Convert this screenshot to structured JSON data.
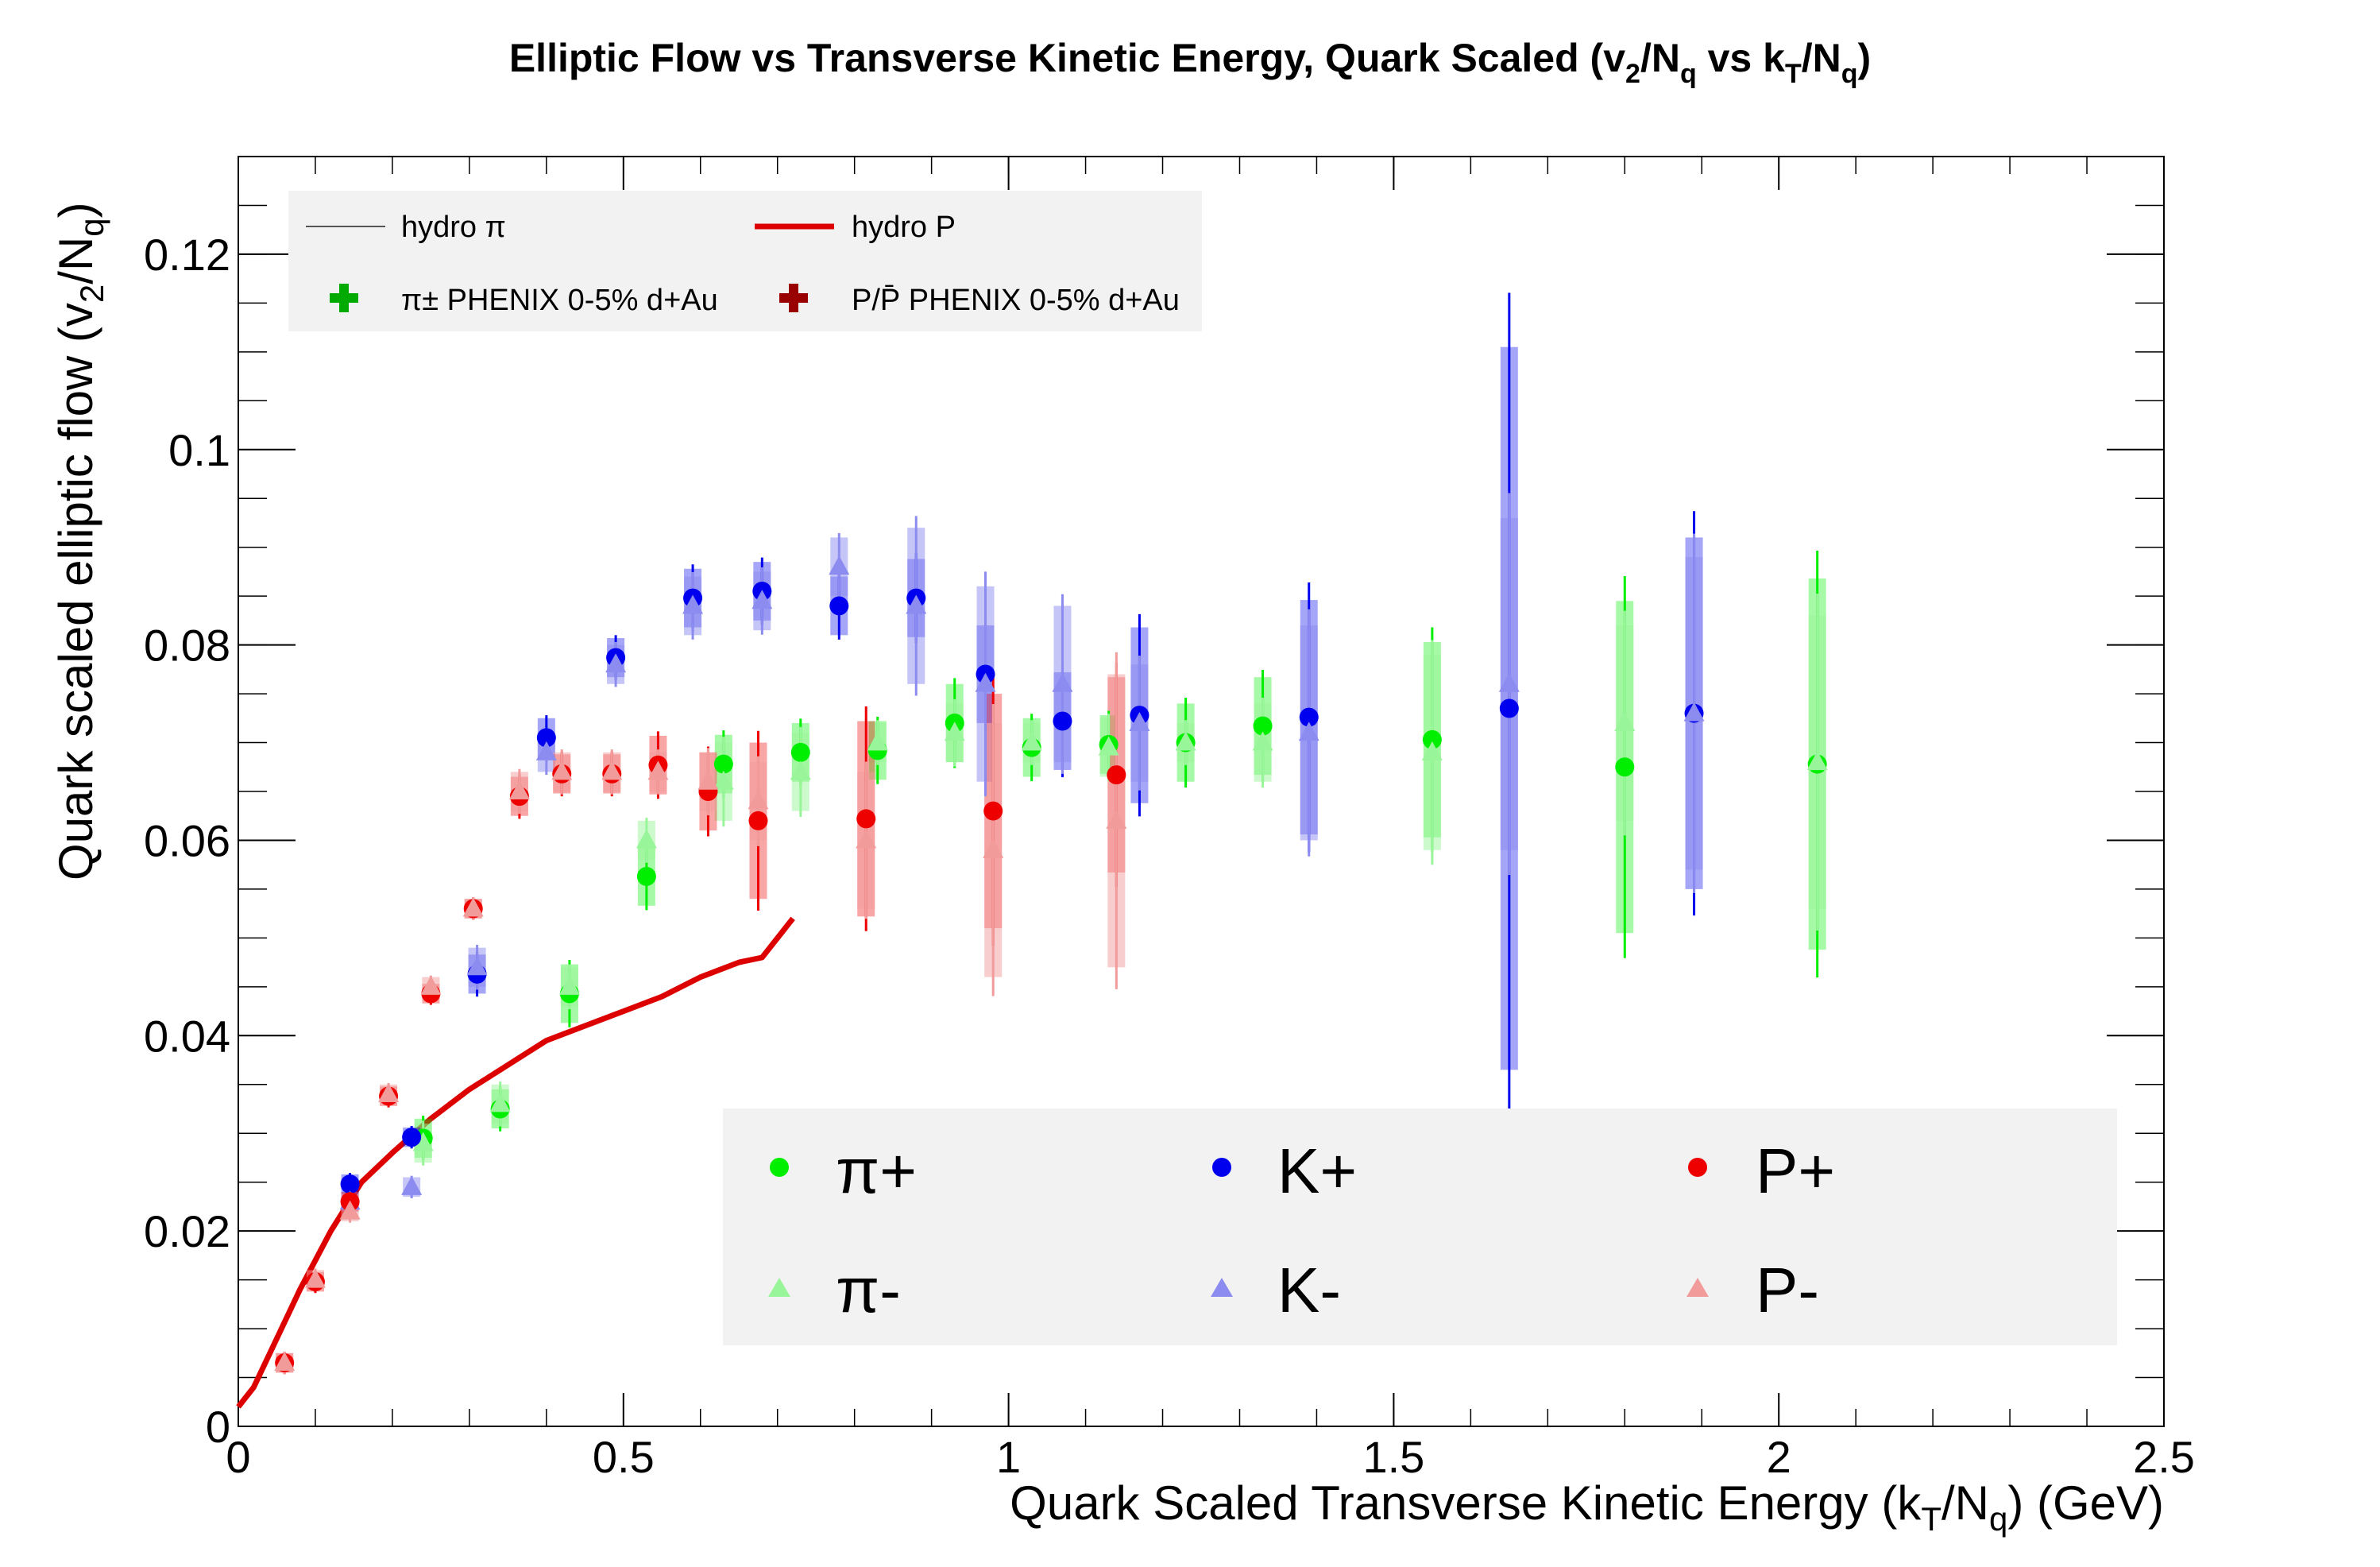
{
  "chart_data": {
    "type": "scatter",
    "title": "Elliptic Flow vs Transverse Kinetic Energy, Quark Scaled (v2/Nq vs kT/Nq)",
    "xlabel": "Quark Scaled Transverse Kinetic Energy (kT/Nq) (GeV)",
    "ylabel": "Quark scaled elliptic flow (v2/Nq)",
    "xlim": [
      0,
      2.5
    ],
    "ylim": [
      0,
      0.13
    ],
    "xticks": [
      0,
      0.5,
      1,
      1.5,
      2,
      2.5
    ],
    "xtick_labels": [
      "0",
      "0.5",
      "1",
      "1.5",
      "2",
      "2.5"
    ],
    "yticks": [
      0,
      0.02,
      0.04,
      0.06,
      0.08,
      0.1,
      0.12
    ],
    "ytick_labels": [
      "0",
      "0.02",
      "0.04",
      "0.06",
      "0.08",
      "0.1",
      "0.12"
    ],
    "series": [
      {
        "name": "π+",
        "marker": "circle",
        "color": "#00ee00",
        "x": [
          0.24,
          0.34,
          0.43,
          0.53,
          0.63,
          0.73,
          0.83,
          0.93,
          1.03,
          1.13,
          1.23,
          1.33,
          1.55,
          1.8,
          2.05
        ],
        "y": [
          0.0295,
          0.0325,
          0.0443,
          0.0563,
          0.0678,
          0.069,
          0.0692,
          0.072,
          0.0695,
          0.0698,
          0.07,
          0.0717,
          0.0703,
          0.0675,
          0.0678
        ],
        "err": [
          0.002,
          0.002,
          0.003,
          0.003,
          0.003,
          0.003,
          0.003,
          0.004,
          0.003,
          0.003,
          0.004,
          0.005,
          0.01,
          0.017,
          0.019
        ]
      },
      {
        "name": "π-",
        "marker": "triangle",
        "color": "#99f599",
        "x": [
          0.24,
          0.34,
          0.43,
          0.53,
          0.63,
          0.73,
          0.83,
          0.93,
          1.03,
          1.13,
          1.23,
          1.33,
          1.55,
          1.8,
          2.05
        ],
        "y": [
          0.029,
          0.033,
          0.045,
          0.06,
          0.066,
          0.067,
          0.07,
          0.071,
          0.07,
          0.0695,
          0.07,
          0.07,
          0.069,
          0.072,
          0.068
        ],
        "err": [
          0.002,
          0.002,
          0.002,
          0.002,
          0.004,
          0.004,
          0.002,
          0.003,
          0.002,
          0.003,
          0.002,
          0.004,
          0.01,
          0.01,
          0.015
        ]
      },
      {
        "name": "K+",
        "marker": "circle",
        "color": "#0000ee",
        "x": [
          0.145,
          0.225,
          0.31,
          0.4,
          0.49,
          0.59,
          0.68,
          0.78,
          0.88,
          0.97,
          1.07,
          1.17,
          1.39,
          1.65,
          1.89
        ],
        "y": [
          0.0248,
          0.0296,
          0.0463,
          0.0705,
          0.0787,
          0.0848,
          0.0855,
          0.084,
          0.0848,
          0.077,
          0.0722,
          0.0728,
          0.0726,
          0.0735,
          0.073
        ],
        "err": [
          0.001,
          0.001,
          0.002,
          0.002,
          0.002,
          0.003,
          0.003,
          0.003,
          0.004,
          0.005,
          0.005,
          0.009,
          0.012,
          0.037,
          0.018
        ]
      },
      {
        "name": "K-",
        "marker": "triangle",
        "color": "#8c8cf0",
        "x": [
          0.145,
          0.225,
          0.31,
          0.4,
          0.49,
          0.59,
          0.68,
          0.78,
          0.88,
          0.97,
          1.07,
          1.17,
          1.39,
          1.65,
          1.89
        ],
        "y": [
          0.023,
          0.0245,
          0.047,
          0.069,
          0.078,
          0.084,
          0.0845,
          0.088,
          0.084,
          0.076,
          0.076,
          0.072,
          0.071,
          0.076,
          0.073
        ],
        "err": [
          0.001,
          0.001,
          0.002,
          0.002,
          0.002,
          0.003,
          0.003,
          0.003,
          0.008,
          0.01,
          0.008,
          0.006,
          0.011,
          0.017,
          0.016
        ]
      },
      {
        "name": "P+",
        "marker": "circle",
        "color": "#ee0000",
        "x": [
          0.06,
          0.1,
          0.145,
          0.195,
          0.25,
          0.305,
          0.365,
          0.42,
          0.485,
          0.545,
          0.61,
          0.675,
          0.815,
          0.98,
          1.14
        ],
        "y": [
          0.0065,
          0.0148,
          0.023,
          0.0338,
          0.0443,
          0.053,
          0.0645,
          0.0668,
          0.0668,
          0.0677,
          0.065,
          0.062,
          0.0622,
          0.063,
          0.0667
        ],
        "err": [
          0.001,
          0.001,
          0.001,
          0.001,
          0.001,
          0.001,
          0.002,
          0.002,
          0.002,
          0.003,
          0.004,
          0.008,
          0.01,
          0.012,
          0.01
        ]
      },
      {
        "name": "P-",
        "marker": "triangle",
        "color": "#f29b9b",
        "x": [
          0.06,
          0.1,
          0.145,
          0.195,
          0.25,
          0.305,
          0.365,
          0.42,
          0.485,
          0.545,
          0.61,
          0.675,
          0.815,
          0.98,
          1.14
        ],
        "y": [
          0.0065,
          0.015,
          0.022,
          0.034,
          0.045,
          0.053,
          0.065,
          0.067,
          0.067,
          0.067,
          0.066,
          0.064,
          0.06,
          0.059,
          0.062
        ],
        "err": [
          0.001,
          0.001,
          0.001,
          0.001,
          0.001,
          0.001,
          0.002,
          0.002,
          0.002,
          0.002,
          0.003,
          0.004,
          0.007,
          0.013,
          0.015
        ]
      }
    ],
    "hydro_p": {
      "name": "hydro P",
      "color": "#dd0000",
      "x": [
        0,
        0.02,
        0.05,
        0.08,
        0.12,
        0.16,
        0.2,
        0.25,
        0.3,
        0.35,
        0.4,
        0.45,
        0.5,
        0.55,
        0.6,
        0.65,
        0.68,
        0.7,
        0.72
      ],
      "y": [
        0.002,
        0.004,
        0.009,
        0.014,
        0.02,
        0.025,
        0.028,
        0.0315,
        0.0345,
        0.037,
        0.0395,
        0.041,
        0.0425,
        0.044,
        0.046,
        0.0475,
        0.048,
        0.05,
        0.052
      ]
    },
    "legend_top": [
      {
        "label": "hydro π",
        "style": "thin-line",
        "color": "#555555"
      },
      {
        "label": "hydro P",
        "style": "thick-line",
        "color": "#dd0000"
      },
      {
        "label": "π± PHENIX 0-5% d+Au",
        "style": "cross",
        "color": "#00aa00"
      },
      {
        "label": "P/P̄ PHENIX 0-5% d+Au",
        "style": "cross",
        "color": "#990000"
      }
    ],
    "legend_bottom": [
      {
        "label": "π+",
        "style": "circle",
        "color": "#00ee00"
      },
      {
        "label": "K+",
        "style": "circle",
        "color": "#0000ee"
      },
      {
        "label": "P+",
        "style": "circle",
        "color": "#ee0000"
      },
      {
        "label": "π-",
        "style": "triangle",
        "color": "#99f599"
      },
      {
        "label": "K-",
        "style": "triangle",
        "color": "#8c8cf0"
      },
      {
        "label": "P-",
        "style": "triangle",
        "color": "#f29b9b"
      }
    ]
  }
}
